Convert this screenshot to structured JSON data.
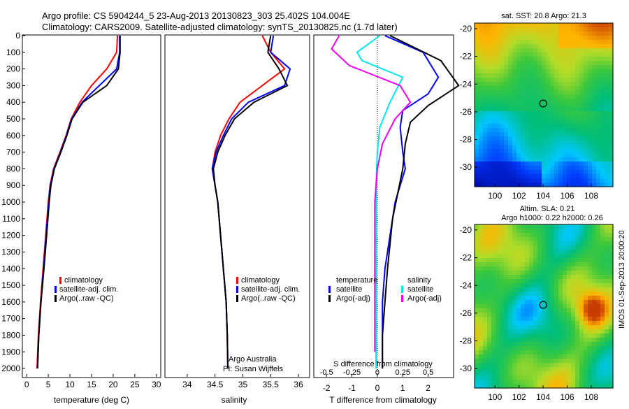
{
  "header": {
    "line1": "Argo profile: CS 5904244_5 23-Aug-2013 20130823_303 25.402S 104.004E",
    "line2": "Climatology: CARS2009. Satellite-adjusted climatology: synTS_20130825.nc (1.7d later)"
  },
  "side_text": "IMOS 01-Sep-2013 20:00:20",
  "chart_data": [
    {
      "id": "temperature",
      "type": "line",
      "xlabel": "temperature (deg C)",
      "ylabel": "",
      "xlim": [
        -1,
        31
      ],
      "ylim": [
        2050,
        0
      ],
      "xticks": [
        0,
        5,
        10,
        15,
        20,
        25,
        30
      ],
      "yticks": [
        0,
        100,
        200,
        300,
        400,
        500,
        600,
        700,
        800,
        900,
        1000,
        1100,
        1200,
        1300,
        1400,
        1500,
        1600,
        1700,
        1800,
        1900,
        2000
      ],
      "legend": [
        "climatology",
        "satellite-adj. clim.",
        "Argo(..raw -QC)"
      ],
      "legend_position": "bottom-left",
      "series": [
        {
          "name": "climatology",
          "color": "#ff0000",
          "x": [
            21,
            20.8,
            18.5,
            15,
            12.3,
            10.3,
            9.1,
            7.7,
            6.2,
            5.4,
            5.0,
            4.4,
            3.8,
            3.2,
            2.7,
            2.4
          ],
          "y": [
            0,
            100,
            200,
            300,
            400,
            500,
            600,
            700,
            800,
            900,
            1000,
            1200,
            1400,
            1600,
            1800,
            2000
          ]
        },
        {
          "name": "satellite-adj. clim.",
          "color": "#0000ff",
          "x": [
            21.5,
            21.5,
            20.8,
            16.8,
            12.8,
            10.4,
            9.2,
            7.8,
            6.3,
            5.5,
            5.1,
            4.5,
            3.9,
            3.3,
            2.8,
            2.5
          ],
          "y": [
            0,
            100,
            200,
            300,
            400,
            500,
            600,
            700,
            800,
            900,
            1000,
            1200,
            1400,
            1600,
            1800,
            2000
          ]
        },
        {
          "name": "Argo(..raw -QC)",
          "color": "#000000",
          "x": [
            21.6,
            21.6,
            21.2,
            18.5,
            13,
            10.5,
            9.3,
            7.9,
            6.4,
            5.6,
            5.2,
            4.6,
            4.0,
            3.3,
            2.8,
            2.5
          ],
          "y": [
            0,
            100,
            200,
            300,
            400,
            500,
            600,
            700,
            800,
            900,
            1000,
            1200,
            1400,
            1600,
            1800,
            2000
          ]
        }
      ]
    },
    {
      "id": "salinity",
      "type": "line",
      "xlabel": "salinity",
      "xlim": [
        33.6,
        36.2
      ],
      "ylim": [
        2050,
        0
      ],
      "xticks": [
        34,
        34.5,
        35,
        35.5,
        36
      ],
      "legend": [
        "climatology",
        "satellite-adj. clim.",
        "Argo(..raw -QC)"
      ],
      "legend_position": "bottom-right",
      "annotations": [
        "Argo Australia",
        "PI: Susan Wijffels"
      ],
      "series": [
        {
          "name": "climatology",
          "color": "#ff0000",
          "x": [
            35.35,
            35.5,
            35.75,
            35.35,
            34.95,
            34.75,
            34.6,
            34.5,
            34.45,
            34.5,
            34.55,
            34.6,
            34.65,
            34.7,
            34.72,
            34.73
          ],
          "y": [
            0,
            100,
            200,
            300,
            400,
            500,
            600,
            700,
            800,
            900,
            1000,
            1200,
            1400,
            1600,
            1800,
            2000
          ]
        },
        {
          "name": "satellite-adj. clim.",
          "color": "#0000ff",
          "x": [
            35.55,
            35.5,
            35.85,
            35.75,
            35.1,
            34.8,
            34.65,
            34.52,
            34.45,
            34.5,
            34.55,
            34.6,
            34.65,
            34.7,
            34.72,
            34.73
          ],
          "y": [
            0,
            100,
            200,
            300,
            400,
            500,
            600,
            700,
            800,
            900,
            1000,
            1200,
            1400,
            1600,
            1800,
            2000
          ]
        },
        {
          "name": "Argo(..raw -QC)",
          "color": "#000000",
          "x": [
            35.5,
            35.45,
            35.65,
            35.8,
            35.2,
            34.85,
            34.68,
            34.55,
            34.47,
            34.5,
            34.55,
            34.6,
            34.65,
            34.7,
            34.72,
            34.73
          ],
          "y": [
            0,
            100,
            200,
            300,
            400,
            500,
            600,
            700,
            800,
            900,
            1000,
            1200,
            1400,
            1600,
            1800,
            2000
          ]
        }
      ]
    },
    {
      "id": "differences",
      "type": "line",
      "xlabel": "T difference from climatology",
      "top_xlabel": "S difference from climatology",
      "xlim": [
        -2.5,
        3
      ],
      "xticks": [
        -2,
        -1,
        0,
        1,
        2
      ],
      "xtick_labels": [
        "-2",
        "-1",
        "0",
        "1",
        "2"
      ],
      "top_xticks": [
        -0.5,
        -0.25,
        0,
        0.25,
        0.5
      ],
      "top_xtick_labels": [
        "-0.5",
        "-0.25",
        "0",
        "0.25",
        "0.5"
      ],
      "ylim": [
        2050,
        0
      ],
      "legend_groups": [
        {
          "title": "temperature",
          "entries": [
            {
              "label": "satellite",
              "color": "#0000ff"
            },
            {
              "label": "Argo(-adj)",
              "color": "#000000"
            }
          ]
        },
        {
          "title": "salinity",
          "entries": [
            {
              "label": "satellite",
              "color": "#00e5ee"
            },
            {
              "label": "Argo(-adj)",
              "color": "#ee00ee"
            }
          ]
        }
      ],
      "series": [
        {
          "name": "temperature satellite",
          "color": "#0000ff",
          "x": [
            0.3,
            1.8,
            2.4,
            2.0,
            1.0,
            0.9,
            1.0,
            1.1,
            0.9,
            0.7,
            0.5,
            0.3,
            0.2,
            0.2,
            0.2
          ],
          "y": [
            0,
            100,
            250,
            350,
            450,
            550,
            700,
            800,
            900,
            1000,
            1200,
            1400,
            1600,
            1800,
            2000
          ]
        },
        {
          "name": "temperature Argo(-adj)",
          "color": "#000000",
          "x": [
            0.5,
            2.5,
            3.2,
            2.0,
            1.3,
            1.1,
            1.0,
            0.8,
            0.6,
            0.5,
            0.4,
            0.3,
            0.2,
            0.2
          ],
          "y": [
            0,
            150,
            300,
            420,
            520,
            650,
            800,
            950,
            1100,
            1250,
            1400,
            1600,
            1800,
            2000
          ]
        },
        {
          "name": "salinity satellite",
          "color": "#00e5ee",
          "x": [
            0.1,
            -0.8,
            -0.6,
            1.0,
            0.5,
            0.1,
            0.0,
            -0.05,
            -0.05,
            -0.05,
            -0.05,
            -0.05
          ],
          "y": [
            0,
            100,
            150,
            250,
            400,
            550,
            700,
            900,
            1100,
            1400,
            1700,
            2000
          ]
        },
        {
          "name": "salinity Argo(-adj)",
          "color": "#ee00ee",
          "x": [
            -1.5,
            -1.8,
            -1.1,
            0.9,
            1.3,
            0.7,
            0.2,
            0.0,
            -0.1,
            -0.1,
            -0.1,
            -0.1
          ],
          "y": [
            0,
            80,
            180,
            300,
            400,
            500,
            650,
            800,
            1000,
            1300,
            1600,
            1900
          ]
        }
      ]
    },
    {
      "id": "sst_map",
      "type": "heatmap",
      "title": "sat. SST: 20.8 Argo: 21.3",
      "xticks": [
        100,
        102,
        104,
        106,
        108
      ],
      "yticks": [
        -20,
        -22,
        -24,
        -26,
        -28,
        -30
      ],
      "xlim": [
        98.3,
        109.8
      ],
      "ylim": [
        -31.4,
        -19.6
      ],
      "marker": {
        "lon": 104.004,
        "lat": -25.402
      }
    },
    {
      "id": "sla_map",
      "type": "heatmap",
      "title": "Altim. SLA: 0.21",
      "subtitle": "Argo h1000: 0.22 h2000: 0.26",
      "xticks": [
        100,
        102,
        104,
        106,
        108
      ],
      "yticks": [
        -20,
        -22,
        -24,
        -26,
        -28,
        -30
      ],
      "xlim": [
        98.3,
        109.8
      ],
      "ylim": [
        -31.4,
        -19.6
      ],
      "marker": {
        "lon": 104.004,
        "lat": -25.402
      }
    }
  ]
}
